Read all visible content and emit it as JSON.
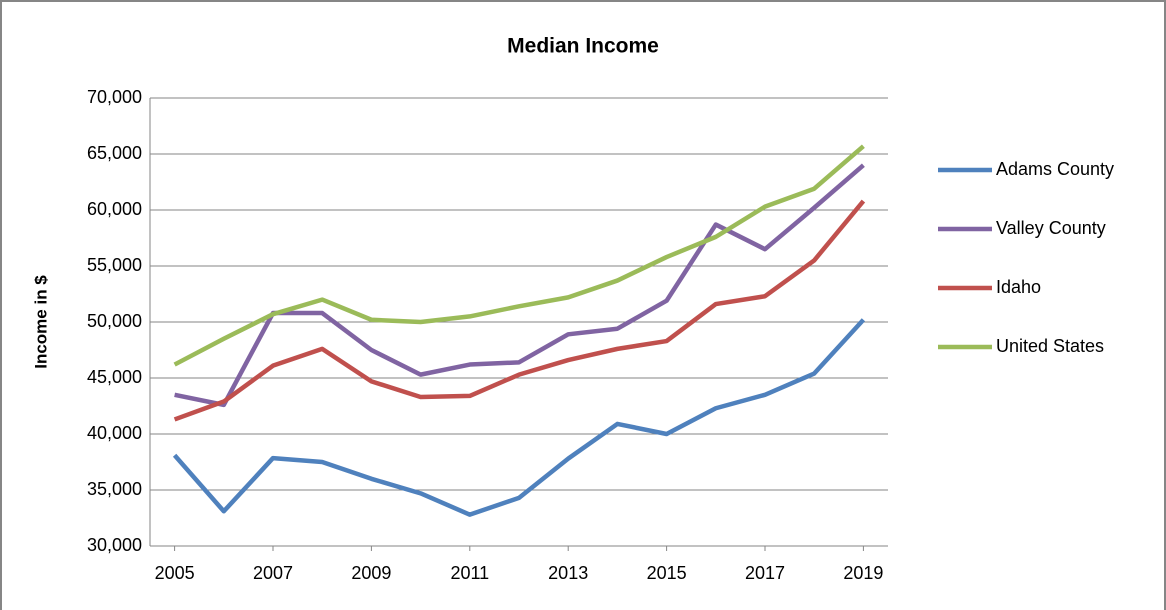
{
  "chart_data": {
    "type": "line",
    "title": "Median Income",
    "y_label": "Income in $",
    "x": [
      2005,
      2006,
      2007,
      2008,
      2009,
      2010,
      2011,
      2012,
      2013,
      2014,
      2015,
      2016,
      2017,
      2018,
      2019
    ],
    "series": [
      {
        "name": "Adams County",
        "color": "#4f81bd",
        "values": [
          38100,
          33100,
          37850,
          37500,
          36000,
          34700,
          32800,
          34300,
          37800,
          40900,
          40000,
          42300,
          43500,
          45400,
          50200
        ]
      },
      {
        "name": "Valley County",
        "color": "#8064a2",
        "values": [
          43500,
          42600,
          50800,
          50800,
          47500,
          45300,
          46200,
          46400,
          48900,
          49400,
          51900,
          58700,
          56500,
          60200,
          64000
        ]
      },
      {
        "name": "Idaho",
        "color": "#c0504d",
        "values": [
          41300,
          42900,
          46100,
          47600,
          44700,
          43300,
          43400,
          45300,
          46600,
          47600,
          48300,
          51600,
          52300,
          55500,
          60800
        ]
      },
      {
        "name": "United States",
        "color": "#9bbb59",
        "values": [
          46200,
          48500,
          50700,
          52000,
          50200,
          50000,
          50500,
          51400,
          52200,
          53700,
          55800,
          57600,
          60300,
          61900,
          65700
        ]
      }
    ],
    "xlim": [
      2004.5,
      2019.5
    ],
    "xticks": [
      2005,
      2007,
      2009,
      2011,
      2013,
      2015,
      2017,
      2019
    ],
    "ylim": [
      30000,
      70000
    ],
    "yticks": [
      {
        "value": 30000,
        "label": "30,000"
      },
      {
        "value": 35000,
        "label": "35,000"
      },
      {
        "value": 40000,
        "label": "40,000"
      },
      {
        "value": 45000,
        "label": "45,000"
      },
      {
        "value": 50000,
        "label": "50,000"
      },
      {
        "value": 55000,
        "label": "55,000"
      },
      {
        "value": 60000,
        "label": "60,000"
      },
      {
        "value": 65000,
        "label": "65,000"
      },
      {
        "value": 70000,
        "label": "70,000"
      }
    ],
    "grid": true,
    "legend": "right"
  }
}
